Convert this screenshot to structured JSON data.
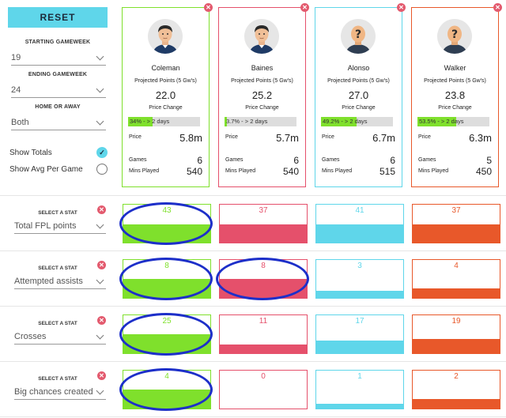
{
  "sidebar": {
    "reset_label": "RESET",
    "starting_gameweek_label": "STARTING GAMEWEEK",
    "starting_gameweek_value": "19",
    "ending_gameweek_label": "ENDING GAMEWEEK",
    "ending_gameweek_value": "24",
    "home_away_label": "HOME OR AWAY",
    "home_away_value": "Both",
    "show_totals_label": "Show Totals",
    "show_totals_checked": true,
    "show_avg_label": "Show Avg Per Game",
    "show_avg_checked": false
  },
  "players": [
    {
      "name": "Coleman",
      "projected_label": "Projected Points (5 Gw's)",
      "projected": "22.0",
      "price_change_label": "Price Change",
      "price_change_text": "34% - > 2 days",
      "price_change_pct": 34,
      "price_label": "Price",
      "price": "5.8m",
      "games_label": "Games",
      "games": "6",
      "mins_label": "Mins Played",
      "mins": "540",
      "color": "#7fe02c",
      "avatar": "face"
    },
    {
      "name": "Baines",
      "projected_label": "Projected Points (5 Gw's)",
      "projected": "25.2",
      "price_change_label": "Price Change",
      "price_change_text": "3.7% - > 2 days",
      "price_change_pct": 3.7,
      "price_label": "Price",
      "price": "5.7m",
      "games_label": "Games",
      "games": "6",
      "mins_label": "Mins Played",
      "mins": "540",
      "color": "#e5506b",
      "avatar": "face"
    },
    {
      "name": "Alonso",
      "projected_label": "Projected Points (5 Gw's)",
      "projected": "27.0",
      "price_change_label": "Price Change",
      "price_change_text": "49.2% - > 2 days",
      "price_change_pct": 49.2,
      "price_label": "Price",
      "price": "6.7m",
      "games_label": "Games",
      "games": "6",
      "mins_label": "Mins Played",
      "mins": "515",
      "color": "#5fd6ea",
      "avatar": "unknown"
    },
    {
      "name": "Walker",
      "projected_label": "Projected Points (5 Gw's)",
      "projected": "23.8",
      "price_change_label": "Price Change",
      "price_change_text": "53.5% - > 2 days",
      "price_change_pct": 53.5,
      "price_label": "Price",
      "price": "6.3m",
      "games_label": "Games",
      "games": "5",
      "mins_label": "Mins Played",
      "mins": "450",
      "color": "#e8582a",
      "avatar": "unknown"
    }
  ],
  "stats": [
    {
      "select_label": "SELECT A STAT",
      "stat": "Total FPL points",
      "values": [
        "43",
        "37",
        "41",
        "37"
      ],
      "fill": [
        0.48,
        0.48,
        0.48,
        0.48
      ],
      "highlighted": [
        0
      ]
    },
    {
      "select_label": "SELECT A STAT",
      "stat": "Attempted assists",
      "values": [
        "8",
        "8",
        "3",
        "4"
      ],
      "fill": [
        0.5,
        0.5,
        0.19,
        0.25
      ],
      "highlighted": [
        0,
        1
      ]
    },
    {
      "select_label": "SELECT A STAT",
      "stat": "Crosses",
      "values": [
        "25",
        "11",
        "17",
        "19"
      ],
      "fill": [
        0.5,
        0.22,
        0.34,
        0.38
      ],
      "highlighted": [
        0
      ]
    },
    {
      "select_label": "SELECT A STAT",
      "stat": "Big chances created",
      "values": [
        "4",
        "0",
        "1",
        "2"
      ],
      "fill": [
        0.5,
        0,
        0.125,
        0.25
      ],
      "highlighted": [
        0
      ]
    }
  ],
  "icons": {
    "close": "close-icon",
    "chevron": "chevron-down-icon",
    "check": "check-icon"
  }
}
